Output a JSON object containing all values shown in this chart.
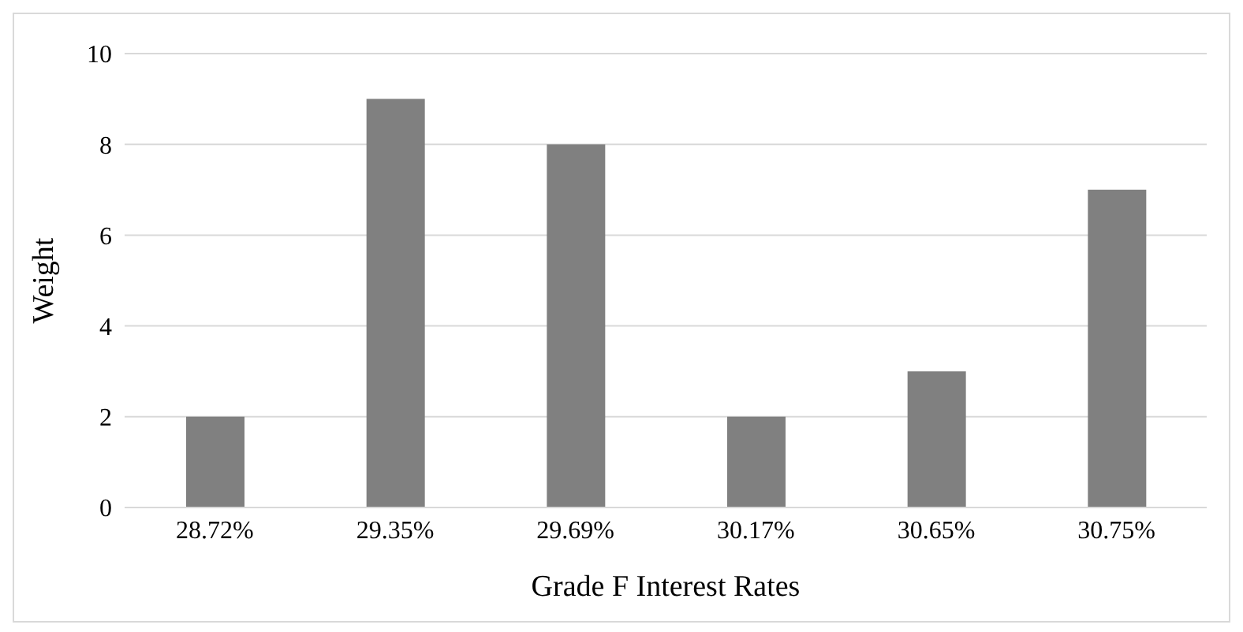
{
  "chart_data": {
    "type": "bar",
    "xlabel": "Grade F Interest Rates",
    "ylabel": "Weight",
    "categories": [
      "28.72%",
      "29.35%",
      "29.69%",
      "30.17%",
      "30.65%",
      "30.75%"
    ],
    "values": [
      2,
      9,
      8,
      2,
      3,
      7
    ],
    "color": "#808080",
    "ylim": [
      0,
      10
    ],
    "yticks": [
      0,
      2,
      4,
      6,
      8,
      10
    ],
    "grid": "y"
  }
}
